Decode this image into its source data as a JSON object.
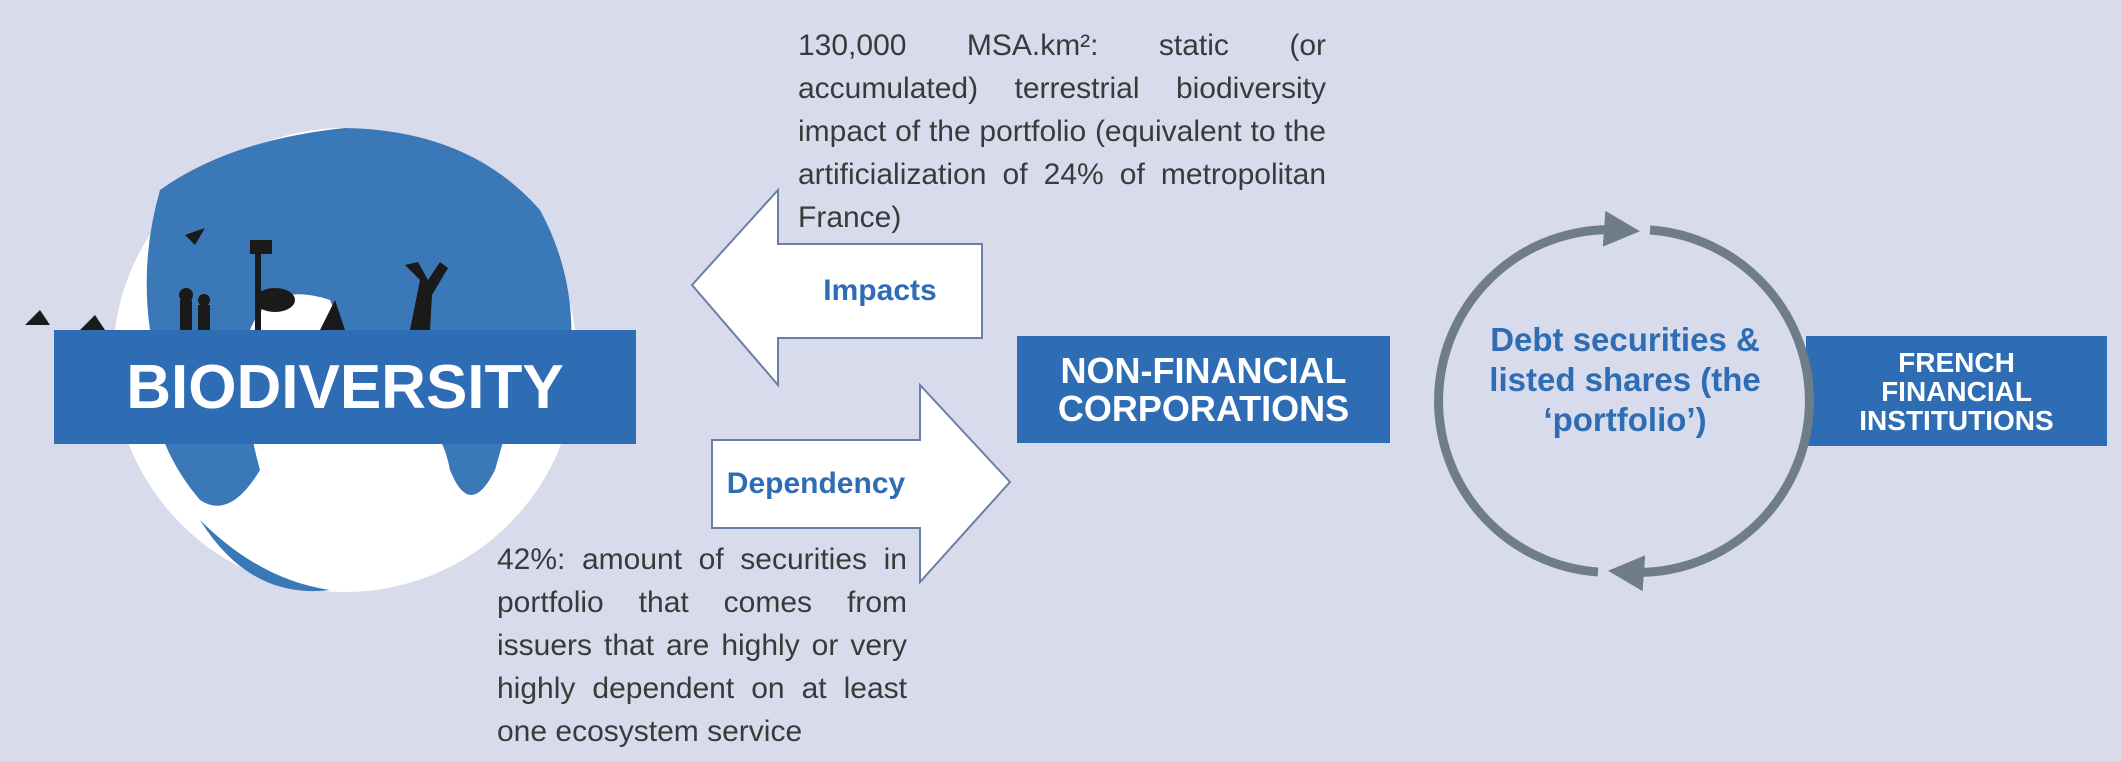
{
  "top_note": "130,000 MSA.km²: static (or accumulated) terrestrial biodiversity impact of the portfolio (equivalent to the artificialization of 24% of metropolitan France)",
  "bottom_note": "42%: amount of securities in portfolio that comes from issuers that are highly or very highly dependent on at least one ecosystem service",
  "biodiversity": "BIODIVERSITY",
  "impacts": "Impacts",
  "dependency": "Dependency",
  "corporations": "NON-FINANCIAL CORPORATIONS",
  "portfolio": "Debt securities & listed shares (the ‘portfolio’)",
  "institutions": "FRENCH FINANCIAL INSTITUTIONS"
}
